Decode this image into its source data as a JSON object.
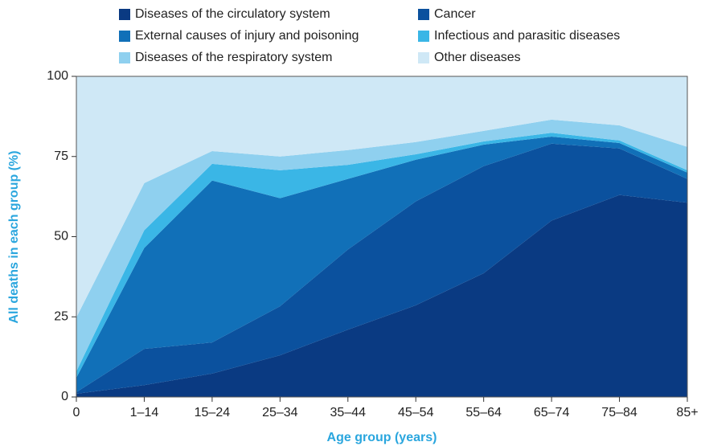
{
  "chart_data": {
    "type": "stacked_area",
    "x_label": "Age group (years)",
    "y_label": "All deaths in each group (%)",
    "categories": [
      "0",
      "1–14",
      "15–24",
      "25–34",
      "35–44",
      "45–54",
      "55–64",
      "65–74",
      "75–84",
      "85+"
    ],
    "series": [
      {
        "name": "Diseases of the circulatory system",
        "color": "#0a3a82",
        "values": [
          1,
          3.7,
          7.3,
          13,
          21,
          28.6,
          38.6,
          55,
          63,
          60.6
        ]
      },
      {
        "name": "Cancer",
        "color": "#0b519e",
        "values": [
          0.5,
          11.3,
          9.7,
          15.3,
          25,
          32.4,
          33.4,
          24,
          14.5,
          7.4
        ]
      },
      {
        "name": "External causes of injury and poisoning",
        "color": "#1170b8",
        "values": [
          4.5,
          31.5,
          50.5,
          33.7,
          22,
          13,
          6.7,
          2.2,
          1.7,
          2
        ]
      },
      {
        "name": "Infectious and parasitic diseases",
        "color": "#3ab6e6",
        "values": [
          2,
          5.5,
          5.2,
          8.7,
          4.4,
          1.7,
          1,
          1.2,
          0.8,
          0.7
        ]
      },
      {
        "name": "Diseases of the respiratory system",
        "color": "#8fd0ef",
        "values": [
          16.8,
          14.7,
          4,
          4.3,
          4.6,
          3.8,
          3.3,
          4.1,
          4.7,
          7.3
        ]
      },
      {
        "name": "Other diseases",
        "color": "#cfe8f6",
        "values": [
          75.2,
          33.3,
          23.3,
          25,
          23,
          20.5,
          17,
          13.5,
          15.3,
          22
        ]
      }
    ],
    "ylim": [
      0,
      100
    ],
    "yticks": [
      0,
      25,
      50,
      75,
      100
    ]
  }
}
